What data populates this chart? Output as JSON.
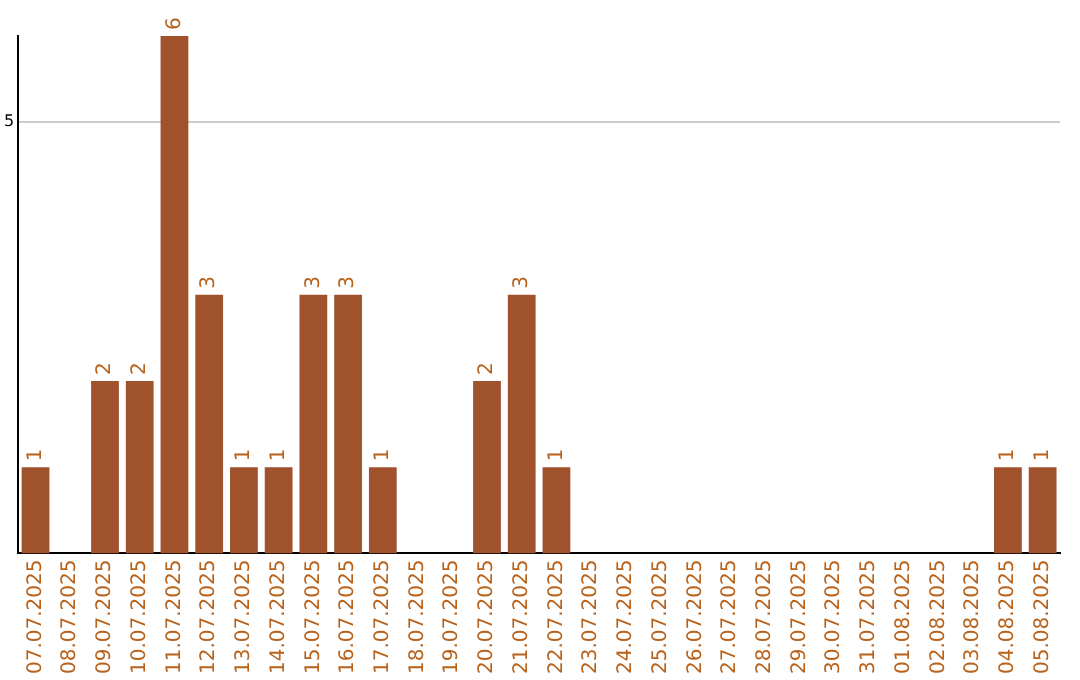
{
  "chart_data": {
    "type": "bar",
    "categories": [
      "07.07.2025",
      "08.07.2025",
      "09.07.2025",
      "10.07.2025",
      "11.07.2025",
      "12.07.2025",
      "13.07.2025",
      "14.07.2025",
      "15.07.2025",
      "16.07.2025",
      "17.07.2025",
      "18.07.2025",
      "19.07.2025",
      "20.07.2025",
      "21.07.2025",
      "22.07.2025",
      "23.07.2025",
      "24.07.2025",
      "25.07.2025",
      "26.07.2025",
      "27.07.2025",
      "28.07.2025",
      "29.07.2025",
      "30.07.2025",
      "31.07.2025",
      "01.08.2025",
      "02.08.2025",
      "03.08.2025",
      "04.08.2025",
      "05.08.2025"
    ],
    "values": [
      1,
      0,
      2,
      2,
      6,
      3,
      1,
      1,
      3,
      3,
      1,
      0,
      0,
      2,
      3,
      1,
      0,
      0,
      0,
      0,
      0,
      0,
      0,
      0,
      0,
      0,
      0,
      0,
      1,
      1
    ],
    "value_labels": [
      "1",
      null,
      "2",
      "2",
      "6",
      "3",
      "1",
      "1",
      "3",
      "3",
      "1",
      null,
      null,
      "2",
      "3",
      "1",
      null,
      null,
      null,
      null,
      null,
      null,
      null,
      null,
      null,
      null,
      null,
      null,
      "1",
      "1"
    ],
    "color": "#a0522d",
    "ylim": [
      0,
      6
    ],
    "yticks": [
      5
    ],
    "grid": "y"
  }
}
